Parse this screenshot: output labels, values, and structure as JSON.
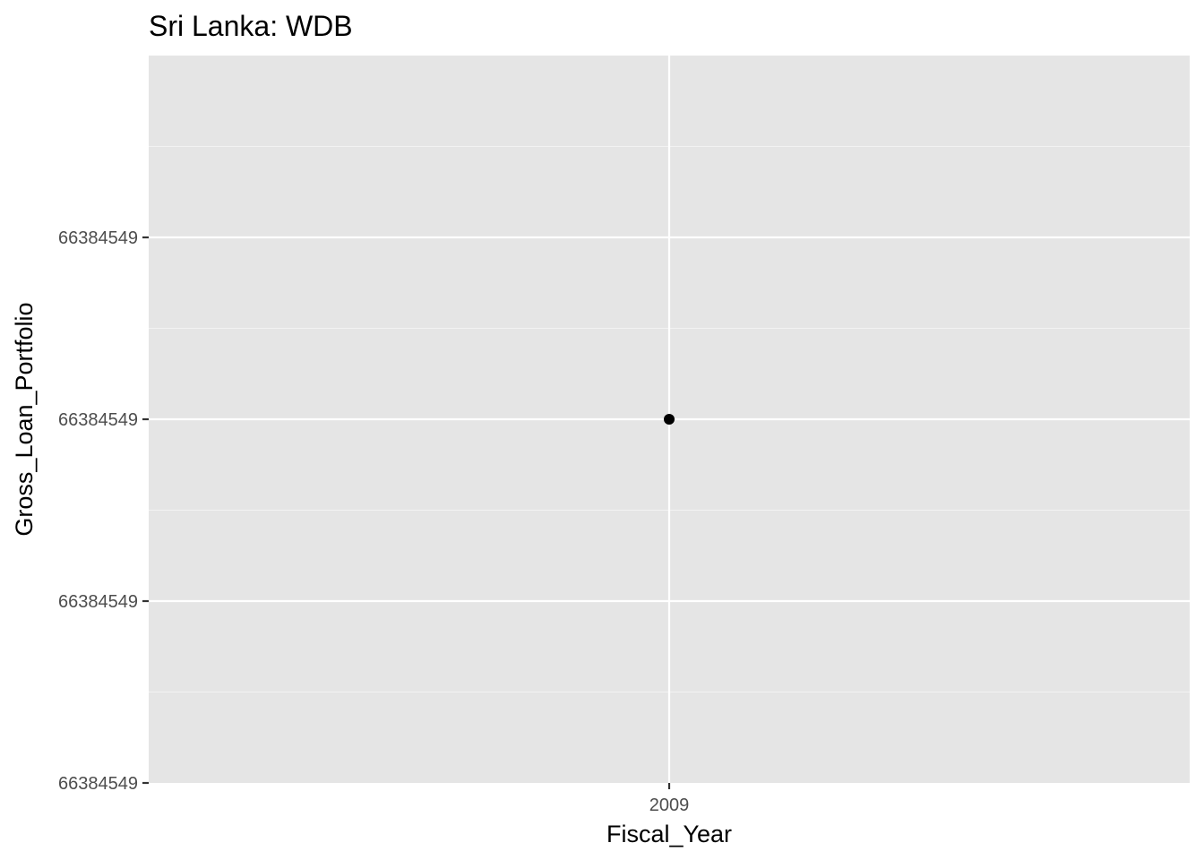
{
  "chart_data": {
    "type": "scatter",
    "title": "Sri Lanka:  WDB",
    "xlabel": "Fiscal_Year",
    "ylabel": "Gross_Loan_Portfolio",
    "x_categories": [
      "2009"
    ],
    "y_tick_labels": [
      "66384549",
      "66384549",
      "66384549",
      "66384549"
    ],
    "points": [
      {
        "x": "2009",
        "y": 66384549
      }
    ],
    "grid": true,
    "legend": "none"
  },
  "colors": {
    "panel_background": "#e5e5e5",
    "grid_major": "#ffffff",
    "grid_minor": "#f2f2f2",
    "point": "#000000",
    "tick_text": "#4d4d4d",
    "tick_mark": "#333333"
  }
}
